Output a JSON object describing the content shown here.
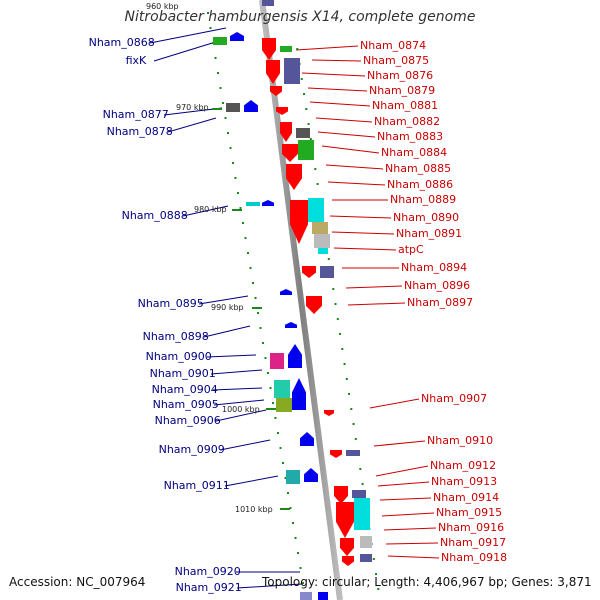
{
  "title": "Nitrobacter hamburgensis X14, complete genome",
  "footer": {
    "accession": "Accession: NC_007964",
    "summary": "Topology: circular; Length: 4,406,967 bp; Genes: 3,871"
  },
  "colors": {
    "left_label": "#000080",
    "right_label": "#cc0000",
    "backbone": "#9a9a9a",
    "rev_arrow": "#0000ee",
    "fwd_arrow": "#ff0000",
    "tick": "#1a8a1a"
  },
  "position_ticks": [
    "960 kbp",
    "970 kbp",
    "980 kbp",
    "990 kbp",
    "1000 kbp",
    "1010 kbp"
  ],
  "left_labels": [
    "Nham_0868",
    "fixK",
    "Nham_0877",
    "Nham_0878",
    "Nham_0888",
    "Nham_0895",
    "Nham_0898",
    "Nham_0900",
    "Nham_0901",
    "Nham_0904",
    "Nham_0905",
    "Nham_0906",
    "Nham_0909",
    "Nham_0911",
    "Nham_0920",
    "Nham_0921"
  ],
  "right_labels": [
    "Nham_0874",
    "Nham_0875",
    "Nham_0876",
    "Nham_0879",
    "Nham_0881",
    "Nham_0882",
    "Nham_0883",
    "Nham_0884",
    "Nham_0885",
    "Nham_0886",
    "Nham_0889",
    "Nham_0890",
    "Nham_0891",
    "atpC",
    "Nham_0894",
    "Nham_0896",
    "Nham_0897",
    "Nham_0907",
    "Nham_0910",
    "Nham_0912",
    "Nham_0913",
    "Nham_0914",
    "Nham_0915",
    "Nham_0916",
    "Nham_0917",
    "Nham_0918"
  ]
}
